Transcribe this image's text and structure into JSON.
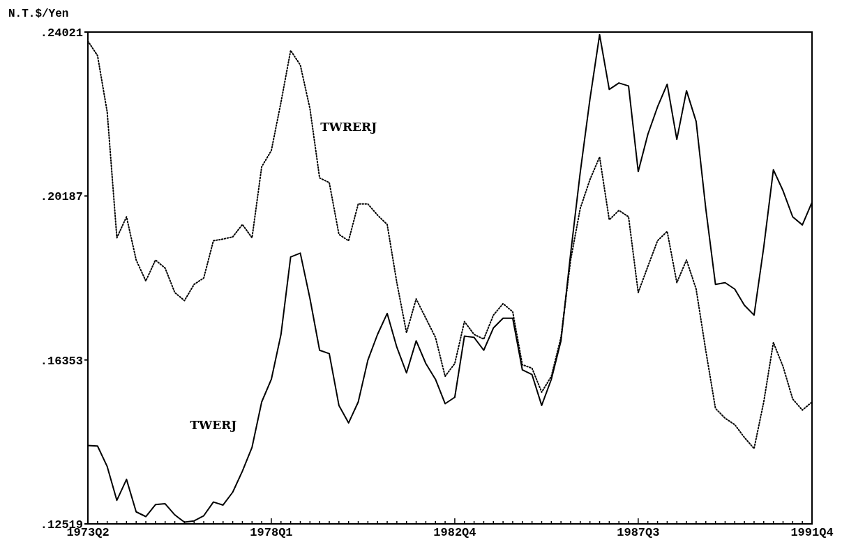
{
  "chart_data": {
    "type": "line",
    "ylabel": "N.T.$/Yen",
    "categories": [
      "1973Q2",
      null,
      null,
      null,
      null,
      null,
      null,
      null,
      null,
      null,
      null,
      null,
      null,
      null,
      null,
      null,
      null,
      null,
      null,
      "1978Q1",
      null,
      null,
      null,
      null,
      null,
      null,
      null,
      null,
      null,
      null,
      null,
      null,
      null,
      null,
      null,
      null,
      null,
      null,
      "1982Q4",
      null,
      null,
      null,
      null,
      null,
      null,
      null,
      null,
      null,
      null,
      null,
      null,
      null,
      null,
      null,
      null,
      null,
      null,
      "1987Q3",
      null,
      null,
      null,
      null,
      null,
      null,
      null,
      null,
      null,
      null,
      null,
      null,
      null,
      null,
      null,
      null,
      null,
      "1991Q4"
    ],
    "ylim": [
      0.12519,
      0.24021
    ],
    "yticks": [
      {
        "value": 0.12519,
        "label": ".12519"
      },
      {
        "value": 0.16353,
        "label": ".16353"
      },
      {
        "value": 0.20187,
        "label": ".20187"
      },
      {
        "value": 0.24021,
        "label": ".24021"
      }
    ],
    "grid": false,
    "marker": "none",
    "series": [
      {
        "name": "TWRERJ",
        "color": "#000000",
        "line_style": "dotted",
        "values": [
          0.2381,
          0.2347,
          0.2215,
          0.1921,
          0.197,
          0.1869,
          0.182,
          0.1869,
          0.185,
          0.1793,
          0.1774,
          0.1812,
          0.1827,
          0.1914,
          0.1918,
          0.1923,
          0.1952,
          0.1921,
          0.2087,
          0.2125,
          0.2238,
          0.2359,
          0.2325,
          0.2223,
          0.2061,
          0.205,
          0.1929,
          0.1914,
          0.2,
          0.2,
          0.1974,
          0.1952,
          0.1816,
          0.1699,
          0.1778,
          0.1733,
          0.1688,
          0.1597,
          0.1627,
          0.1725,
          0.1695,
          0.1684,
          0.174,
          0.1767,
          0.1748,
          0.1624,
          0.1616,
          0.156,
          0.1597,
          0.1688,
          0.1869,
          0.199,
          0.2057,
          0.211,
          0.1963,
          0.1985,
          0.197,
          0.1793,
          0.1854,
          0.1914,
          0.1936,
          0.1816,
          0.1869,
          0.1801,
          0.1657,
          0.1522,
          0.1499,
          0.1484,
          0.1454,
          0.1428,
          0.1537,
          0.1676,
          0.162,
          0.1544,
          0.1518,
          0.1537
        ]
      },
      {
        "name": "TWERJ",
        "color": "#000000",
        "line_style": "solid",
        "values": [
          0.1435,
          0.1434,
          0.1386,
          0.1307,
          0.1356,
          0.128,
          0.1269,
          0.1297,
          0.1299,
          0.1273,
          0.1256,
          0.1259,
          0.1271,
          0.1303,
          0.1296,
          0.1326,
          0.1375,
          0.1431,
          0.1537,
          0.159,
          0.1695,
          0.1876,
          0.1885,
          0.1779,
          0.1658,
          0.165,
          0.1529,
          0.1488,
          0.1537,
          0.1635,
          0.1695,
          0.1744,
          0.1665,
          0.1605,
          0.168,
          0.1627,
          0.159,
          0.1533,
          0.1548,
          0.1691,
          0.1688,
          0.1658,
          0.171,
          0.1733,
          0.1733,
          0.1612,
          0.1601,
          0.1529,
          0.159,
          0.168,
          0.1884,
          0.2075,
          0.2245,
          0.2396,
          0.2268,
          0.2283,
          0.2276,
          0.2076,
          0.2163,
          0.2227,
          0.228,
          0.2151,
          0.2265,
          0.2193,
          0.1989,
          0.1812,
          0.1816,
          0.1801,
          0.1763,
          0.174,
          0.1899,
          0.208,
          0.2031,
          0.197,
          0.1951,
          0.2004
        ]
      }
    ]
  }
}
